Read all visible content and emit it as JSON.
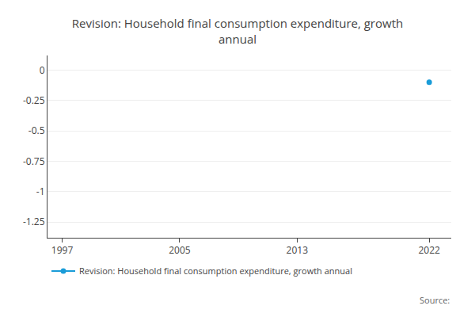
{
  "chart_data": {
    "type": "line",
    "title": "Revision: Household final consumption expenditure, growth\nannual",
    "x": [
      2022
    ],
    "series": [
      {
        "name": "Revision: Household final consumption expenditure, growth annual",
        "color": "#1a9cd8",
        "marker": "circle",
        "values": [
          -0.1
        ]
      }
    ],
    "xlim": [
      1996.0,
      2023.5
    ],
    "xticks": [
      1997,
      2005,
      2013,
      2022
    ],
    "ylim": [
      -1.38,
      0.12
    ],
    "yticks": [
      0,
      -0.25,
      -0.5,
      -0.75,
      -1,
      -1.25
    ],
    "grid": "y",
    "legend": "bottom-left",
    "annotations": [
      "Source:"
    ]
  }
}
